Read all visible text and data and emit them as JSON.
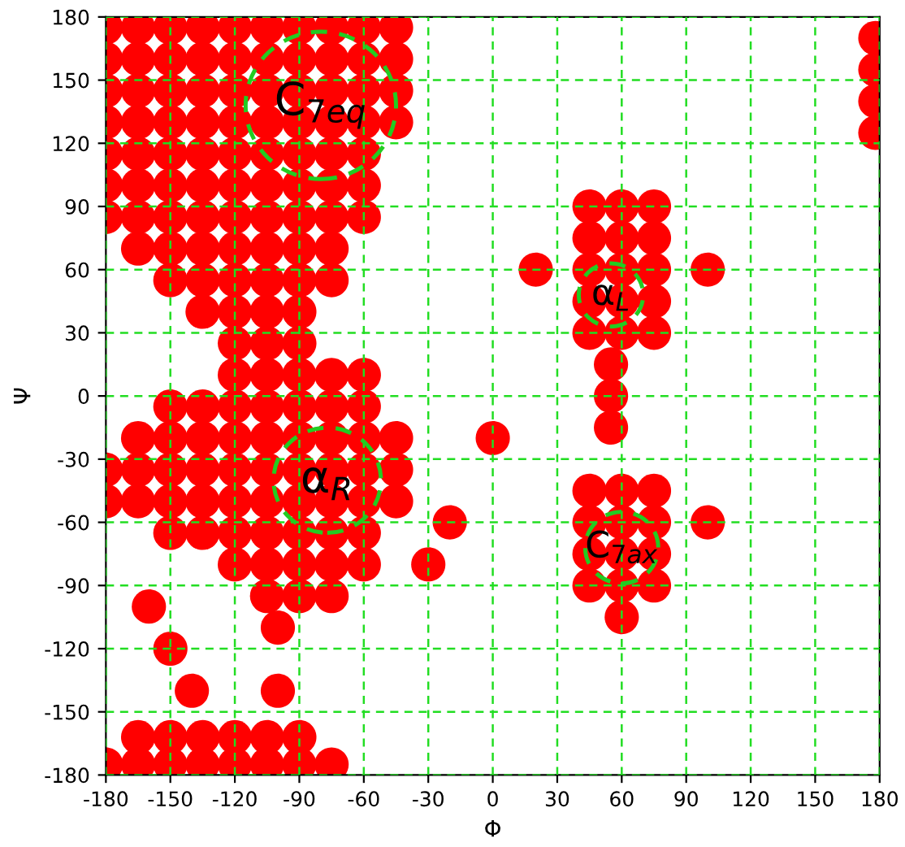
{
  "chart_data": {
    "type": "scatter",
    "xlabel": "Φ",
    "ylabel": "Ψ",
    "xlim": [
      -180,
      180
    ],
    "ylim": [
      -180,
      180
    ],
    "xticks": [
      -180,
      -150,
      -120,
      -90,
      -60,
      -30,
      0,
      30,
      60,
      90,
      120,
      150,
      180
    ],
    "yticks": [
      -180,
      -150,
      -120,
      -90,
      -60,
      -30,
      0,
      30,
      60,
      90,
      120,
      150,
      180
    ],
    "grid": true,
    "marker": "circle",
    "legend": false,
    "series": [
      {
        "color": "#ff0000",
        "x": [
          -180,
          -165,
          -150,
          -135,
          -120,
          -105,
          -90,
          -75,
          -60,
          -45,
          -180,
          -165,
          -150,
          -135,
          -120,
          -105,
          -90,
          -75,
          -60,
          -45,
          -180,
          -165,
          -150,
          -135,
          -120,
          -105,
          -90,
          -75,
          -60,
          -45,
          -180,
          -165,
          -150,
          -135,
          -120,
          -105,
          -90,
          -75,
          -60,
          -45,
          -180,
          -165,
          -150,
          -135,
          -120,
          -105,
          -90,
          -75,
          -60,
          -180,
          -165,
          -150,
          -135,
          -120,
          -105,
          -90,
          -75,
          -60,
          -180,
          -165,
          -150,
          -135,
          -120,
          -105,
          -90,
          -75,
          -60,
          -165,
          -150,
          -135,
          -120,
          -105,
          -90,
          -75,
          -150,
          -135,
          -120,
          -105,
          -90,
          -75,
          -135,
          -120,
          -105,
          -90,
          -120,
          -105,
          -90
        ],
        "values": [
          175,
          175,
          175,
          175,
          175,
          175,
          175,
          175,
          175,
          175,
          160,
          160,
          160,
          160,
          160,
          160,
          160,
          160,
          160,
          160,
          145,
          145,
          145,
          145,
          145,
          145,
          145,
          145,
          145,
          145,
          130,
          130,
          130,
          130,
          130,
          130,
          130,
          130,
          130,
          130,
          115,
          115,
          115,
          115,
          115,
          115,
          115,
          115,
          115,
          100,
          100,
          100,
          100,
          100,
          100,
          100,
          100,
          100,
          85,
          85,
          85,
          85,
          85,
          85,
          85,
          85,
          85,
          70,
          70,
          70,
          70,
          70,
          70,
          70,
          55,
          55,
          55,
          55,
          55,
          55,
          40,
          40,
          40,
          40,
          25,
          25,
          25
        ]
      },
      {
        "color": "#ff0000",
        "x": [
          -120,
          -105,
          -90,
          -75,
          -60,
          -150,
          -135,
          -120,
          -105,
          -90,
          -75,
          -60,
          -165,
          -150,
          -135,
          -120,
          -105,
          -90,
          -75,
          -60,
          -45,
          -180,
          -165,
          -150,
          -135,
          -120,
          -105,
          -90,
          -75,
          -60,
          -45,
          -180,
          -165,
          -150,
          -135,
          -120,
          -105,
          -90,
          -75,
          -60,
          -45,
          -150,
          -135,
          -120,
          -105,
          -90,
          -75,
          -60,
          -120,
          -105,
          -90,
          -75,
          -60,
          -105,
          -90,
          -75
        ],
        "values": [
          10,
          10,
          10,
          10,
          10,
          -5,
          -5,
          -5,
          -5,
          -5,
          -5,
          -5,
          -20,
          -20,
          -20,
          -20,
          -20,
          -20,
          -20,
          -20,
          -20,
          -35,
          -35,
          -35,
          -35,
          -35,
          -35,
          -35,
          -35,
          -35,
          -35,
          -50,
          -50,
          -50,
          -50,
          -50,
          -50,
          -50,
          -50,
          -50,
          -50,
          -65,
          -65,
          -65,
          -65,
          -65,
          -65,
          -65,
          -80,
          -80,
          -80,
          -80,
          -80,
          -95,
          -95,
          -95
        ]
      },
      {
        "color": "#ff0000",
        "x": [
          -180,
          -165,
          -150,
          -135,
          -120,
          -105,
          -90,
          -75,
          -165,
          -150,
          -135,
          -120,
          -105,
          -90,
          45,
          60,
          75,
          45,
          60,
          75,
          45,
          60,
          75,
          45,
          60,
          75,
          45,
          60,
          75,
          55,
          55,
          55,
          45,
          60,
          75,
          45,
          60,
          75,
          45,
          60,
          75,
          45,
          60,
          75,
          60,
          178,
          178,
          178,
          178,
          -150,
          -100,
          -30,
          -20,
          0,
          -100,
          -160,
          20,
          100,
          100,
          -140
        ],
        "values": [
          -175,
          -175,
          -175,
          -175,
          -175,
          -175,
          -175,
          -175,
          -162,
          -162,
          -162,
          -162,
          -162,
          -162,
          90,
          90,
          90,
          75,
          75,
          75,
          60,
          60,
          60,
          45,
          45,
          45,
          30,
          30,
          30,
          15,
          0,
          -15,
          -45,
          -45,
          -45,
          -60,
          -60,
          -60,
          -75,
          -75,
          -75,
          -90,
          -90,
          -90,
          -105,
          170,
          155,
          140,
          125,
          -120,
          -140,
          -80,
          -60,
          -20,
          -110,
          -100,
          60,
          60,
          -60,
          -140
        ]
      }
    ],
    "annotations": [
      {
        "text": "C$_{7eq}$",
        "x": -80,
        "y": 138
      },
      {
        "text": "α$_{L}$",
        "x": 55,
        "y": 48
      },
      {
        "text": "α$_{R}$",
        "x": -77,
        "y": -40
      },
      {
        "text": "C$_{7ax}$",
        "x": 60,
        "y": -72
      }
    ]
  }
}
